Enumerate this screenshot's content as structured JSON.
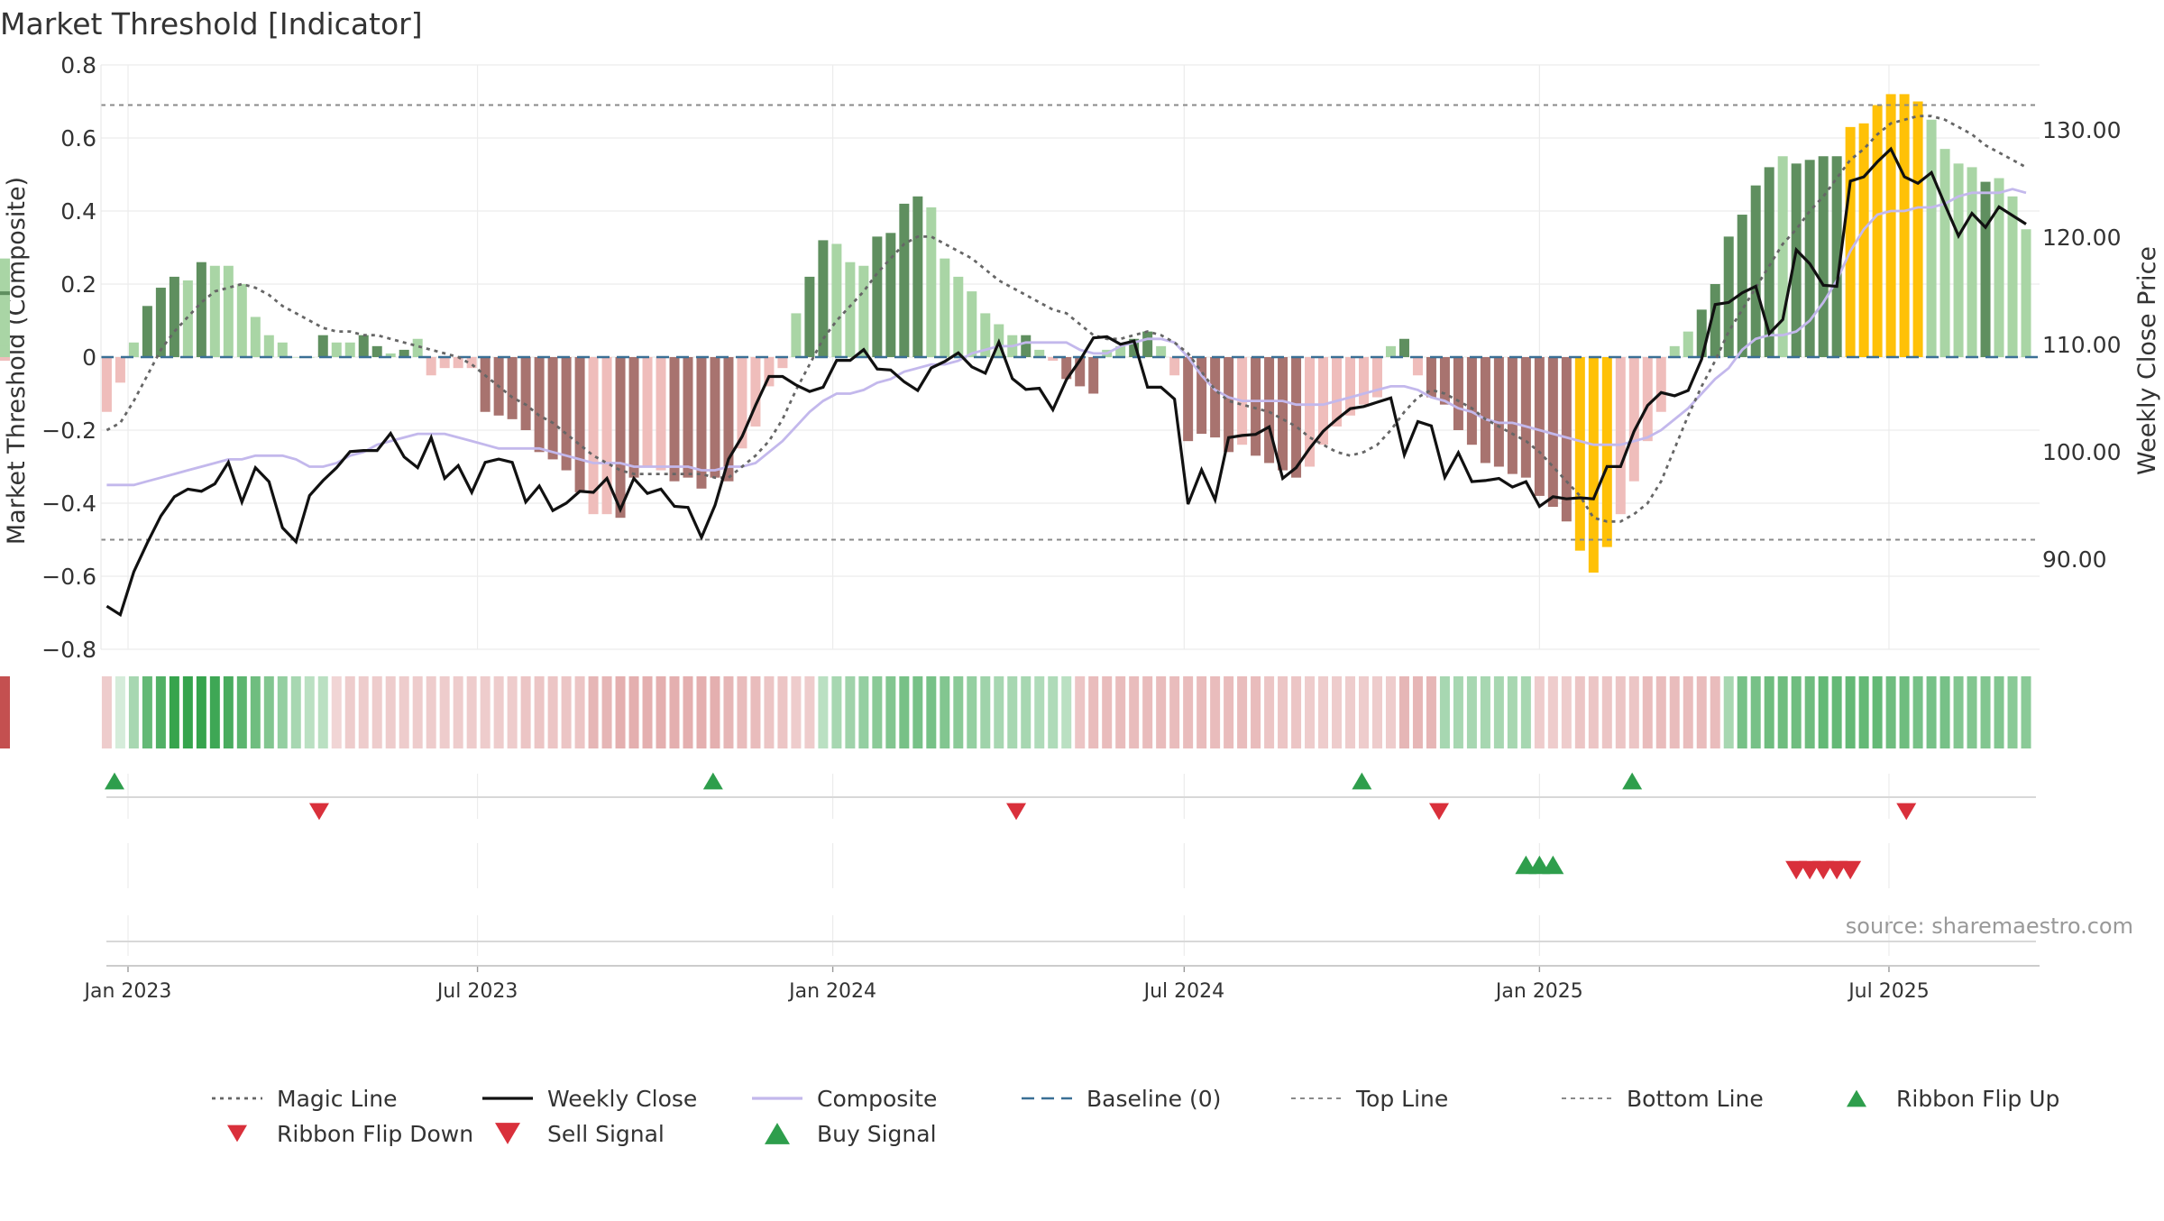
{
  "colors": {
    "strong_green": "#5f8f5f",
    "light_green": "#a9d5a5",
    "strong_red": "#a8736f",
    "light_red": "#efbdbb",
    "gold": "#ffc107",
    "weekly_close": "#111111",
    "composite": "#c3b8ec",
    "magic": "#666666",
    "baseline": "#3a6f95",
    "threshold": "#8a8a8a",
    "buy": "#2e9e4c",
    "sell": "#d9303b",
    "ribbon_up": "#2e9e4c",
    "ribbon_down": "#d9303b",
    "source_text": "#999999"
  },
  "chart_data": {
    "type": "bar",
    "title": "Market Threshold [Indicator]",
    "ylabel": "Market Threshold (Composite)",
    "y2label": "Weekly Close Price",
    "ylim": [
      -0.8,
      0.8
    ],
    "y2lim": [
      81.58,
      136.03
    ],
    "yticks": [
      "0.8",
      "0.6",
      "0.4",
      "0.2",
      "0",
      "−0.2",
      "−0.4",
      "−0.6",
      "−0.8"
    ],
    "y2ticks": [
      "130.00",
      "120.00",
      "110.00",
      "100.00",
      "90.00"
    ],
    "y2tick_values": [
      130,
      120,
      110,
      100,
      90
    ],
    "x_start": "2022-12-18",
    "x_end": "2025-09-17",
    "xticks": [
      {
        "label": "Jan 2023",
        "date": "2023-01-01"
      },
      {
        "label": "Jul 2023",
        "date": "2023-07-01"
      },
      {
        "label": "Jan 2024",
        "date": "2024-01-01"
      },
      {
        "label": "Jul 2024",
        "date": "2024-07-01"
      },
      {
        "label": "Jan 2025",
        "date": "2025-01-01"
      },
      {
        "label": "Jul 2025",
        "date": "2025-07-01"
      }
    ],
    "top_line": 0.69,
    "bottom_line": -0.5,
    "grid": true,
    "legend_placement": "bottom",
    "weeks": [
      "2022-12-21",
      "2022-12-28",
      "2023-01-04",
      "2023-01-11",
      "2023-01-18",
      "2023-01-25",
      "2023-02-01",
      "2023-02-08",
      "2023-02-15",
      "2023-02-22",
      "2023-03-01",
      "2023-03-08",
      "2023-03-15",
      "2023-03-22",
      "2023-03-29",
      "2023-04-05",
      "2023-04-12",
      "2023-04-19",
      "2023-04-26",
      "2023-05-03",
      "2023-05-10",
      "2023-05-17",
      "2023-05-24",
      "2023-05-31",
      "2023-06-07",
      "2023-06-14",
      "2023-06-21",
      "2023-06-28",
      "2023-07-05",
      "2023-07-12",
      "2023-07-19",
      "2023-07-26",
      "2023-08-02",
      "2023-08-09",
      "2023-08-16",
      "2023-08-23",
      "2023-08-30",
      "2023-09-06",
      "2023-09-13",
      "2023-09-20",
      "2023-09-27",
      "2023-10-04",
      "2023-10-11",
      "2023-10-18",
      "2023-10-25",
      "2023-11-01",
      "2023-11-08",
      "2023-11-15",
      "2023-11-22",
      "2023-11-29",
      "2023-12-06",
      "2023-12-13",
      "2023-12-20",
      "2023-12-27",
      "2024-01-03",
      "2024-01-10",
      "2024-01-17",
      "2024-01-24",
      "2024-01-31",
      "2024-02-07",
      "2024-02-14",
      "2024-02-21",
      "2024-02-28",
      "2024-03-06",
      "2024-03-13",
      "2024-03-20",
      "2024-03-27",
      "2024-04-03",
      "2024-04-10",
      "2024-04-17",
      "2024-04-24",
      "2024-05-01",
      "2024-05-08",
      "2024-05-15",
      "2024-05-22",
      "2024-05-29",
      "2024-06-05",
      "2024-06-12",
      "2024-06-19",
      "2024-06-26",
      "2024-07-03",
      "2024-07-10",
      "2024-07-17",
      "2024-07-24",
      "2024-07-31",
      "2024-08-07",
      "2024-08-14",
      "2024-08-21",
      "2024-08-28",
      "2024-09-04",
      "2024-09-11",
      "2024-09-18",
      "2024-09-25",
      "2024-10-02",
      "2024-10-09",
      "2024-10-16",
      "2024-10-23",
      "2024-10-30",
      "2024-11-06",
      "2024-11-13",
      "2024-11-20",
      "2024-11-27",
      "2024-12-04",
      "2024-12-11",
      "2024-12-18",
      "2024-12-25",
      "2025-01-01",
      "2025-01-08",
      "2025-01-15",
      "2025-01-22",
      "2025-01-29",
      "2025-02-05",
      "2025-02-12",
      "2025-02-19",
      "2025-02-26",
      "2025-03-05",
      "2025-03-12",
      "2025-03-19",
      "2025-03-26",
      "2025-04-02",
      "2025-04-09",
      "2025-04-16",
      "2025-04-23",
      "2025-04-30",
      "2025-05-07",
      "2025-05-14",
      "2025-05-21",
      "2025-05-28",
      "2025-06-04",
      "2025-06-11",
      "2025-06-18",
      "2025-06-25",
      "2025-07-02",
      "2025-07-09",
      "2025-07-16",
      "2025-07-23",
      "2025-07-30",
      "2025-08-06",
      "2025-08-13",
      "2025-08-20",
      "2025-08-27",
      "2025-09-03",
      "2025-09-10"
    ],
    "histogram": [
      -0.15,
      -0.07,
      0.04,
      0.14,
      0.19,
      0.22,
      0.21,
      0.26,
      0.25,
      0.25,
      0.2,
      0.11,
      0.06,
      0.04,
      0.0,
      0.0,
      0.06,
      0.04,
      0.04,
      0.06,
      0.03,
      0.01,
      0.02,
      0.05,
      -0.05,
      -0.03,
      -0.03,
      -0.03,
      -0.15,
      -0.16,
      -0.17,
      -0.2,
      -0.26,
      -0.28,
      -0.31,
      -0.37,
      -0.43,
      -0.43,
      -0.44,
      -0.33,
      -0.3,
      -0.31,
      -0.34,
      -0.33,
      -0.36,
      -0.33,
      -0.34,
      -0.25,
      -0.19,
      -0.08,
      -0.03,
      0.12,
      0.22,
      0.32,
      0.31,
      0.26,
      0.25,
      0.33,
      0.34,
      0.42,
      0.44,
      0.41,
      0.27,
      0.22,
      0.18,
      0.12,
      0.09,
      0.06,
      0.06,
      0.02,
      -0.01,
      -0.06,
      -0.08,
      -0.1,
      0.02,
      0.03,
      0.05,
      0.07,
      0.03,
      -0.05,
      -0.23,
      -0.21,
      -0.22,
      -0.26,
      -0.24,
      -0.27,
      -0.29,
      -0.31,
      -0.33,
      -0.3,
      -0.24,
      -0.19,
      -0.16,
      -0.13,
      -0.11,
      0.03,
      0.05,
      -0.05,
      -0.11,
      -0.13,
      -0.2,
      -0.24,
      -0.29,
      -0.3,
      -0.32,
      -0.33,
      -0.38,
      -0.41,
      -0.45,
      -0.53,
      -0.59,
      -0.52,
      -0.43,
      -0.34,
      -0.23,
      -0.15,
      0.03,
      0.07,
      0.13,
      0.2,
      0.33,
      0.39,
      0.47,
      0.52,
      0.55,
      0.53,
      0.54,
      0.55,
      0.55,
      0.63,
      0.64,
      0.69,
      0.72,
      0.72,
      0.7,
      0.65,
      0.57,
      0.53,
      0.52,
      0.48,
      0.49,
      0.44,
      0.35,
      0.27,
      0.18,
      0.17,
      0.16,
      0.03,
      -0.01
    ],
    "bar_color": [
      "lr",
      "lr",
      "lg",
      "sg",
      "sg",
      "sg",
      "lg",
      "sg",
      "lg",
      "lg",
      "lg",
      "lg",
      "lg",
      "lg",
      "lg",
      "lg",
      "sg",
      "lg",
      "lg",
      "sg",
      "sg",
      "lg",
      "sg",
      "lg",
      "lr",
      "lr",
      "lr",
      "lr",
      "sr",
      "sr",
      "sr",
      "sr",
      "sr",
      "sr",
      "sr",
      "sr",
      "lr",
      "lr",
      "sr",
      "sr",
      "lr",
      "lr",
      "sr",
      "sr",
      "sr",
      "sr",
      "sr",
      "lr",
      "lr",
      "lr",
      "lr",
      "lg",
      "sg",
      "sg",
      "lg",
      "lg",
      "lg",
      "sg",
      "sg",
      "sg",
      "sg",
      "lg",
      "lg",
      "lg",
      "lg",
      "lg",
      "lg",
      "lg",
      "sg",
      "lg",
      "lr",
      "sr",
      "sr",
      "sr",
      "lg",
      "lg",
      "sg",
      "sg",
      "lg",
      "lr",
      "sr",
      "sr",
      "sr",
      "sr",
      "lr",
      "sr",
      "sr",
      "sr",
      "sr",
      "lr",
      "lr",
      "lr",
      "lr",
      "lr",
      "lr",
      "lg",
      "sg",
      "lr",
      "sr",
      "sr",
      "sr",
      "sr",
      "sr",
      "sr",
      "sr",
      "sr",
      "sr",
      "sr",
      "sr",
      "y",
      "y",
      "y",
      "lr",
      "lr",
      "lr",
      "lr",
      "lg",
      "lg",
      "sg",
      "sg",
      "sg",
      "sg",
      "sg",
      "sg",
      "lg",
      "sg",
      "sg",
      "sg",
      "sg",
      "y",
      "y",
      "y",
      "y",
      "y",
      "y",
      "lg",
      "lg",
      "lg",
      "lg",
      "sg",
      "lg",
      "lg",
      "lg",
      "lg",
      "sg",
      "lg",
      "lg",
      "lg",
      "lr"
    ],
    "weekly_close": [
      85.6,
      84.8,
      88.8,
      91.5,
      94.0,
      95.8,
      96.5,
      96.3,
      97.0,
      99.0,
      95.3,
      98.5,
      97.2,
      92.9,
      91.6,
      95.9,
      97.3,
      98.5,
      100.0,
      100.1,
      100.1,
      101.7,
      99.5,
      98.5,
      101.3,
      97.5,
      98.7,
      96.2,
      99.0,
      99.3,
      99.0,
      95.3,
      96.8,
      94.5,
      95.2,
      96.3,
      96.2,
      97.5,
      94.6,
      97.5,
      96.1,
      96.5,
      94.9,
      94.8,
      92.0,
      95.0,
      99.3,
      101.4,
      104.3,
      107.0,
      107.0,
      106.2,
      105.6,
      106.0,
      108.5,
      108.5,
      109.5,
      107.7,
      107.6,
      106.5,
      105.7,
      107.8,
      108.4,
      109.2,
      107.9,
      107.3,
      110.2,
      106.8,
      105.8,
      105.9,
      103.9,
      106.7,
      108.5,
      110.6,
      110.7,
      110.0,
      110.3,
      106.0,
      106.0,
      104.9,
      95.1,
      98.3,
      95.5,
      101.3,
      101.5,
      101.6,
      102.3,
      97.5,
      98.5,
      100.3,
      101.9,
      103.0,
      104.0,
      104.2,
      104.6,
      105.0,
      99.7,
      102.8,
      102.4,
      97.6,
      99.9,
      97.2,
      97.3,
      97.5,
      96.7,
      97.2,
      94.9,
      95.8,
      95.6,
      95.7,
      95.6,
      98.6,
      98.6,
      101.9,
      104.3,
      105.5,
      105.2,
      105.7,
      108.6,
      113.7,
      113.9,
      114.8,
      115.4,
      111.0,
      112.3,
      118.8,
      117.5,
      115.5,
      115.4,
      125.2,
      125.6,
      127.0,
      128.2,
      125.6,
      125.0,
      126.0,
      123.0,
      120.1,
      122.2,
      120.9,
      122.8,
      122.0,
      121.2,
      116.7,
      120.7,
      121.8,
      127.3,
      116.0,
      115.6,
      117.3,
      119.1
    ],
    "composite": [
      -0.35,
      -0.35,
      -0.35,
      -0.34,
      -0.33,
      -0.32,
      -0.31,
      -0.3,
      -0.29,
      -0.28,
      -0.28,
      -0.27,
      -0.27,
      -0.27,
      -0.28,
      -0.3,
      -0.3,
      -0.29,
      -0.27,
      -0.26,
      -0.24,
      -0.23,
      -0.22,
      -0.21,
      -0.21,
      -0.21,
      -0.22,
      -0.23,
      -0.24,
      -0.25,
      -0.25,
      -0.25,
      -0.25,
      -0.26,
      -0.27,
      -0.28,
      -0.29,
      -0.29,
      -0.29,
      -0.3,
      -0.3,
      -0.3,
      -0.3,
      -0.3,
      -0.31,
      -0.31,
      -0.3,
      -0.3,
      -0.29,
      -0.26,
      -0.23,
      -0.19,
      -0.15,
      -0.12,
      -0.1,
      -0.1,
      -0.09,
      -0.07,
      -0.06,
      -0.04,
      -0.03,
      -0.02,
      -0.02,
      -0.01,
      0.01,
      0.02,
      0.03,
      0.03,
      0.04,
      0.04,
      0.04,
      0.04,
      0.02,
      0.01,
      0.01,
      0.03,
      0.04,
      0.05,
      0.05,
      0.04,
      0.0,
      -0.05,
      -0.09,
      -0.11,
      -0.12,
      -0.12,
      -0.12,
      -0.12,
      -0.13,
      -0.13,
      -0.13,
      -0.12,
      -0.11,
      -0.1,
      -0.09,
      -0.08,
      -0.08,
      -0.09,
      -0.11,
      -0.12,
      -0.14,
      -0.15,
      -0.17,
      -0.18,
      -0.18,
      -0.19,
      -0.2,
      -0.21,
      -0.22,
      -0.23,
      -0.24,
      -0.24,
      -0.24,
      -0.23,
      -0.22,
      -0.2,
      -0.17,
      -0.14,
      -0.1,
      -0.06,
      -0.03,
      0.02,
      0.05,
      0.06,
      0.06,
      0.07,
      0.1,
      0.15,
      0.21,
      0.29,
      0.35,
      0.39,
      0.4,
      0.4,
      0.41,
      0.41,
      0.42,
      0.44,
      0.45,
      0.45,
      0.45,
      0.46,
      0.45,
      0.46,
      0.47,
      0.46,
      0.46,
      0.48,
      0.46,
      0.42,
      0.4,
      0.41
    ],
    "magic_line": [
      -0.2,
      -0.18,
      -0.12,
      -0.05,
      0.02,
      0.07,
      0.11,
      0.15,
      0.18,
      0.19,
      0.2,
      0.19,
      0.17,
      0.14,
      0.12,
      0.1,
      0.08,
      0.07,
      0.07,
      0.06,
      0.06,
      0.05,
      0.04,
      0.03,
      0.02,
      0.01,
      0.0,
      -0.02,
      -0.05,
      -0.08,
      -0.11,
      -0.13,
      -0.16,
      -0.18,
      -0.21,
      -0.24,
      -0.27,
      -0.29,
      -0.31,
      -0.32,
      -0.32,
      -0.32,
      -0.32,
      -0.32,
      -0.32,
      -0.33,
      -0.33,
      -0.3,
      -0.27,
      -0.23,
      -0.17,
      -0.09,
      -0.02,
      0.05,
      0.1,
      0.14,
      0.18,
      0.23,
      0.27,
      0.31,
      0.33,
      0.33,
      0.31,
      0.29,
      0.27,
      0.24,
      0.21,
      0.19,
      0.17,
      0.15,
      0.13,
      0.12,
      0.09,
      0.06,
      0.05,
      0.05,
      0.06,
      0.07,
      0.06,
      0.04,
      0.01,
      -0.04,
      -0.09,
      -0.12,
      -0.13,
      -0.14,
      -0.15,
      -0.17,
      -0.19,
      -0.22,
      -0.24,
      -0.26,
      -0.27,
      -0.26,
      -0.24,
      -0.2,
      -0.15,
      -0.11,
      -0.09,
      -0.1,
      -0.12,
      -0.14,
      -0.17,
      -0.19,
      -0.21,
      -0.23,
      -0.26,
      -0.3,
      -0.34,
      -0.38,
      -0.44,
      -0.45,
      -0.45,
      -0.43,
      -0.4,
      -0.34,
      -0.25,
      -0.16,
      -0.08,
      -0.01,
      0.07,
      0.13,
      0.19,
      0.25,
      0.31,
      0.35,
      0.4,
      0.44,
      0.49,
      0.54,
      0.57,
      0.61,
      0.64,
      0.65,
      0.66,
      0.66,
      0.65,
      0.63,
      0.61,
      0.58,
      0.56,
      0.54,
      0.52,
      0.47,
      0.41,
      0.37,
      0.32,
      0.26,
      0.2,
      0.15,
      0.13
    ],
    "ribbon": [
      -0.15,
      0.05,
      0.3,
      0.65,
      0.75,
      0.9,
      0.9,
      0.9,
      0.85,
      0.8,
      0.7,
      0.6,
      0.5,
      0.4,
      0.3,
      0.2,
      0.2,
      -0.1,
      -0.15,
      -0.15,
      -0.15,
      -0.15,
      -0.15,
      -0.15,
      -0.15,
      -0.15,
      -0.15,
      -0.15,
      -0.15,
      -0.15,
      -0.15,
      -0.2,
      -0.2,
      -0.2,
      -0.2,
      -0.2,
      -0.3,
      -0.3,
      -0.35,
      -0.35,
      -0.35,
      -0.35,
      -0.35,
      -0.35,
      -0.35,
      -0.35,
      -0.3,
      -0.25,
      -0.25,
      -0.2,
      -0.2,
      -0.15,
      -0.15,
      0.2,
      0.3,
      0.35,
      0.4,
      0.45,
      0.5,
      0.55,
      0.55,
      0.55,
      0.5,
      0.45,
      0.4,
      0.35,
      0.3,
      0.3,
      0.3,
      0.25,
      0.25,
      0.2,
      -0.2,
      -0.25,
      -0.25,
      -0.25,
      -0.25,
      -0.25,
      -0.25,
      -0.25,
      -0.25,
      -0.25,
      -0.25,
      -0.25,
      -0.25,
      -0.25,
      -0.2,
      -0.2,
      -0.2,
      -0.15,
      -0.15,
      -0.15,
      -0.15,
      -0.15,
      -0.15,
      -0.15,
      -0.3,
      -0.3,
      -0.3,
      0.3,
      0.3,
      0.3,
      0.3,
      0.3,
      0.3,
      0.3,
      -0.15,
      -0.15,
      -0.15,
      -0.2,
      -0.2,
      -0.2,
      -0.2,
      -0.2,
      -0.25,
      -0.25,
      -0.25,
      -0.25,
      -0.25,
      -0.25,
      0.3,
      0.55,
      0.55,
      0.6,
      0.6,
      0.6,
      0.6,
      0.65,
      0.65,
      0.65,
      0.65,
      0.65,
      0.6,
      0.6,
      0.55,
      0.55,
      0.55,
      0.5,
      0.5,
      0.5,
      0.5,
      0.45,
      0.45,
      0.35,
      0.3,
      0.15,
      -0.15,
      -0.25,
      -0.35,
      -0.4,
      -0.4,
      -0.4,
      -0.4,
      -0.4,
      -0.45
    ],
    "ribbon_flip_up_dates": [
      "2022-12-25",
      "2023-10-31",
      "2024-10-01",
      "2025-02-18"
    ],
    "ribbon_flip_down_dates": [
      "2023-04-10",
      "2024-04-05",
      "2024-11-10",
      "2025-07-10"
    ],
    "buy_signal_dates": [
      "2024-12-25",
      "2025-01-01",
      "2025-01-08"
    ],
    "sell_signal_dates": [
      "2025-05-14",
      "2025-05-21",
      "2025-05-28",
      "2025-06-04",
      "2025-06-11"
    ],
    "legend": [
      {
        "label": "Magic Line",
        "kind": "dotted",
        "color_key": "magic"
      },
      {
        "label": "Weekly Close",
        "kind": "solid",
        "color_key": "weekly_close"
      },
      {
        "label": "Composite",
        "kind": "solid",
        "color_key": "composite"
      },
      {
        "label": "Baseline (0)",
        "kind": "dashed",
        "color_key": "baseline"
      },
      {
        "label": "Top Line",
        "kind": "dotted-light",
        "color_key": "threshold"
      },
      {
        "label": "Bottom Line",
        "kind": "dotted-light",
        "color_key": "threshold"
      },
      {
        "label": "Ribbon Flip Up",
        "kind": "tri-up",
        "color_key": "ribbon_up"
      },
      {
        "label": "Ribbon Flip Down",
        "kind": "tri-down",
        "color_key": "ribbon_down"
      },
      {
        "label": "Sell Signal",
        "kind": "tri-down-big",
        "color_key": "sell"
      },
      {
        "label": "Buy Signal",
        "kind": "tri-up-big",
        "color_key": "buy"
      }
    ],
    "source": "source: sharemaestro.com"
  }
}
